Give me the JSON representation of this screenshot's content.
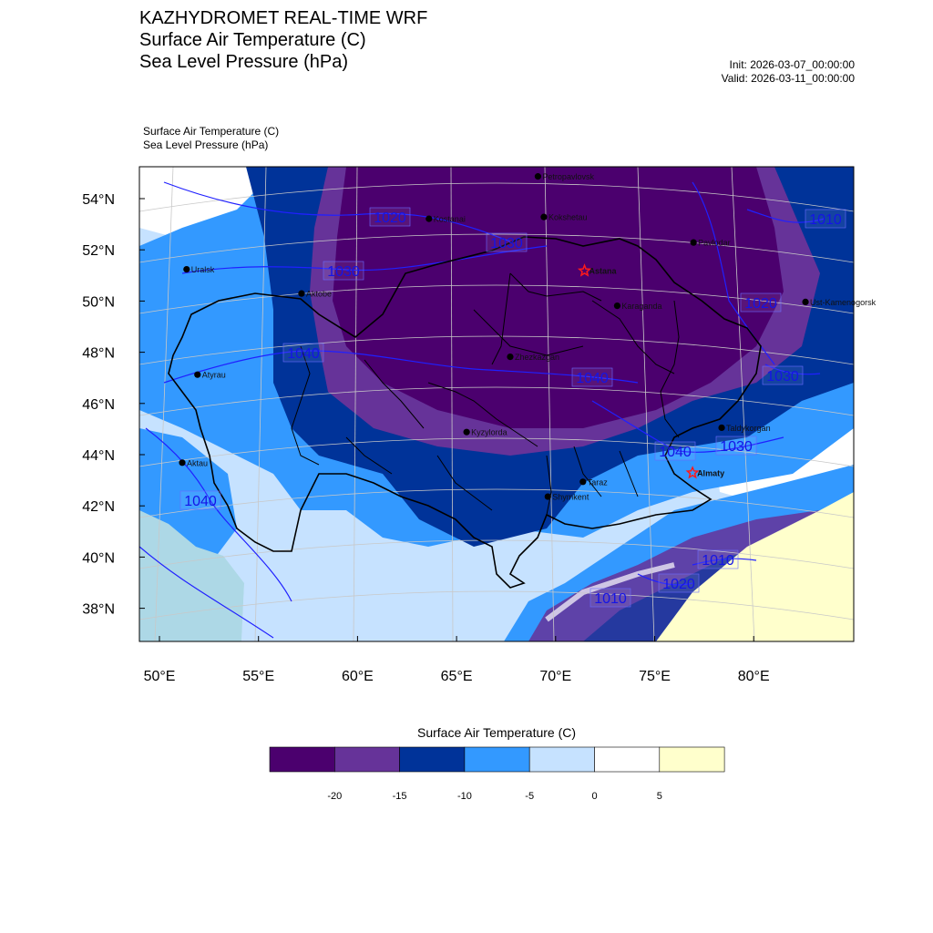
{
  "header": {
    "title_line1": "KAZHYDROMET REAL-TIME WRF",
    "title_line2": "Surface Air Temperature  (C)",
    "title_line3": "Sea Level Pressure  (hPa)",
    "init": "Init: 2026-03-07_00:00:00",
    "valid": "Valid: 2026-03-11_00:00:00"
  },
  "plot": {
    "sub1": "Surface Air Temperature   (C)",
    "sub2": "Sea Level Pressure   (hPa)"
  },
  "axes": {
    "lat_labels": [
      "54°N",
      "52°N",
      "50°N",
      "48°N",
      "46°N",
      "44°N",
      "42°N",
      "40°N",
      "38°N"
    ],
    "lon_labels": [
      "50°E",
      "55°E",
      "60°E",
      "65°E",
      "70°E",
      "75°E",
      "80°E"
    ]
  },
  "cities": [
    {
      "name": "Petropavlovsk",
      "lon": 69.1,
      "lat": 54.87,
      "capital": false
    },
    {
      "name": "Kostanai",
      "lon": 63.6,
      "lat": 53.21,
      "capital": false
    },
    {
      "name": "Kokshetau",
      "lon": 69.4,
      "lat": 53.28,
      "capital": false
    },
    {
      "name": "Pavlodar",
      "lon": 76.95,
      "lat": 52.28,
      "capital": false
    },
    {
      "name": "Uralsk",
      "lon": 51.37,
      "lat": 51.23,
      "capital": false
    },
    {
      "name": "Astana",
      "lon": 71.45,
      "lat": 51.17,
      "capital": true
    },
    {
      "name": "Ust-Kamenogorsk",
      "lon": 82.6,
      "lat": 49.95,
      "capital": false
    },
    {
      "name": "Aktobe",
      "lon": 57.17,
      "lat": 50.28,
      "capital": false
    },
    {
      "name": "Karaganda",
      "lon": 73.1,
      "lat": 49.8,
      "capital": false
    },
    {
      "name": "Atyrau",
      "lon": 51.92,
      "lat": 47.1,
      "capital": false
    },
    {
      "name": "Zhezkazgan",
      "lon": 67.7,
      "lat": 47.8,
      "capital": false
    },
    {
      "name": "Taldykorgan",
      "lon": 78.37,
      "lat": 45.02,
      "capital": false
    },
    {
      "name": "Aktau",
      "lon": 51.15,
      "lat": 43.65,
      "capital": false
    },
    {
      "name": "Kyzylorda",
      "lon": 65.5,
      "lat": 44.85,
      "capital": false
    },
    {
      "name": "Almaty",
      "lon": 76.9,
      "lat": 43.25,
      "capital": true
    },
    {
      "name": "Taraz",
      "lon": 71.37,
      "lat": 42.9,
      "capital": false
    },
    {
      "name": "Shymkent",
      "lon": 69.6,
      "lat": 42.32,
      "capital": false
    }
  ],
  "isobars": [
    {
      "label": "1020",
      "x": 0,
      "y": 0
    },
    {
      "label": "1030"
    },
    {
      "label": "1030"
    },
    {
      "label": "1040"
    },
    {
      "label": "1040"
    },
    {
      "label": "1040"
    },
    {
      "label": "1040"
    },
    {
      "label": "1030"
    },
    {
      "label": "1020"
    },
    {
      "label": "1010"
    },
    {
      "label": "1010"
    },
    {
      "label": "1030"
    },
    {
      "label": "1020"
    },
    {
      "label": "1010"
    }
  ],
  "colorbar": {
    "title": "Surface Air Temperature (C)",
    "tick_labels": [
      "-20",
      "-15",
      "-10",
      "-5",
      "0",
      "5"
    ],
    "colors": [
      "#4b006e",
      "#663399",
      "#003399",
      "#3399ff",
      "#c6e2ff",
      "#ffffff",
      "#ffffcc"
    ]
  }
}
